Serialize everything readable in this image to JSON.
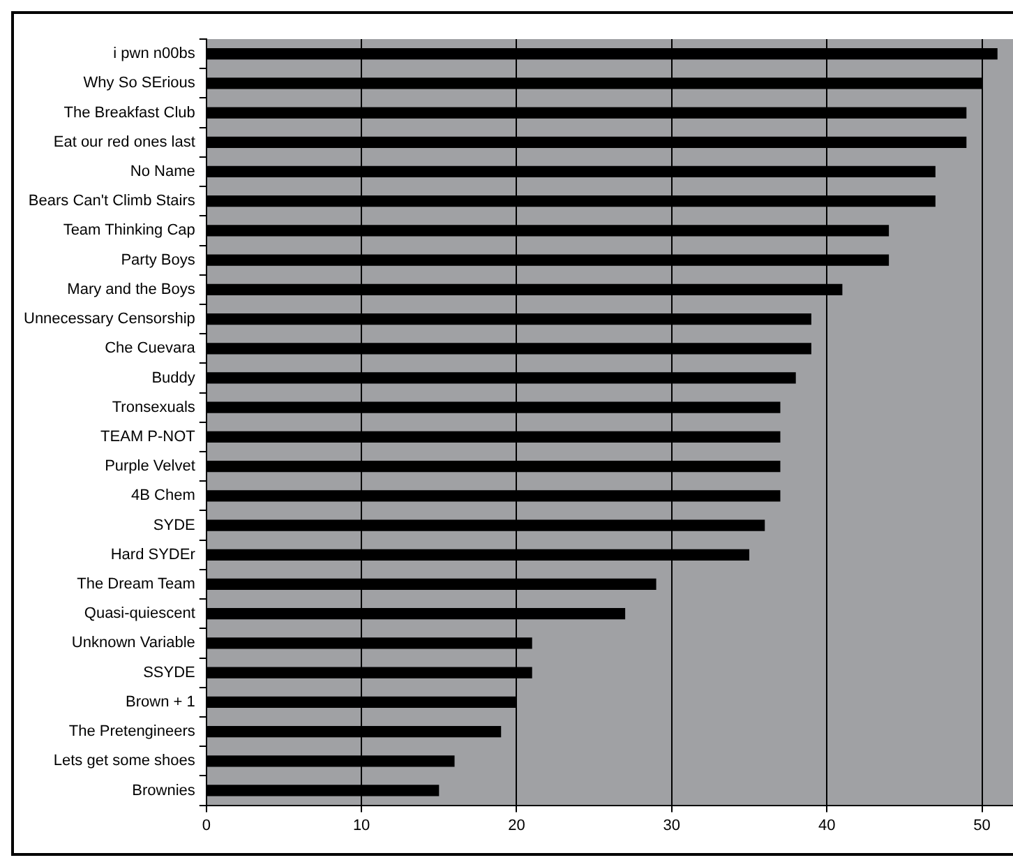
{
  "chart_data": {
    "type": "bar",
    "orientation": "horizontal",
    "categories": [
      "i pwn n00bs",
      "Why So SErious",
      "The Breakfast Club",
      "Eat our red ones last",
      "No Name",
      "Bears Can't Climb Stairs",
      "Team Thinking Cap",
      "Party Boys",
      "Mary and the Boys",
      "Unnecessary Censorship",
      "Che Cuevara",
      "Buddy",
      "Tronsexuals",
      "TEAM P-NOT",
      "Purple Velvet",
      "4B Chem",
      "SYDE",
      "Hard SYDEr",
      "The Dream Team",
      "Quasi-quiescent",
      "Unknown Variable",
      "SSYDE",
      "Brown + 1",
      "The Pretengineers",
      "Lets get some shoes",
      "Brownies"
    ],
    "values": [
      51,
      50,
      49,
      49,
      47,
      47,
      44,
      44,
      41,
      39,
      39,
      38,
      37,
      37,
      37,
      37,
      36,
      35,
      29,
      27,
      21,
      21,
      20,
      19,
      16,
      15
    ],
    "color": "#000000",
    "xlim": [
      0,
      52
    ],
    "xticks": [
      0,
      10,
      20,
      30,
      40,
      50
    ],
    "grid": "x",
    "legend": false
  }
}
